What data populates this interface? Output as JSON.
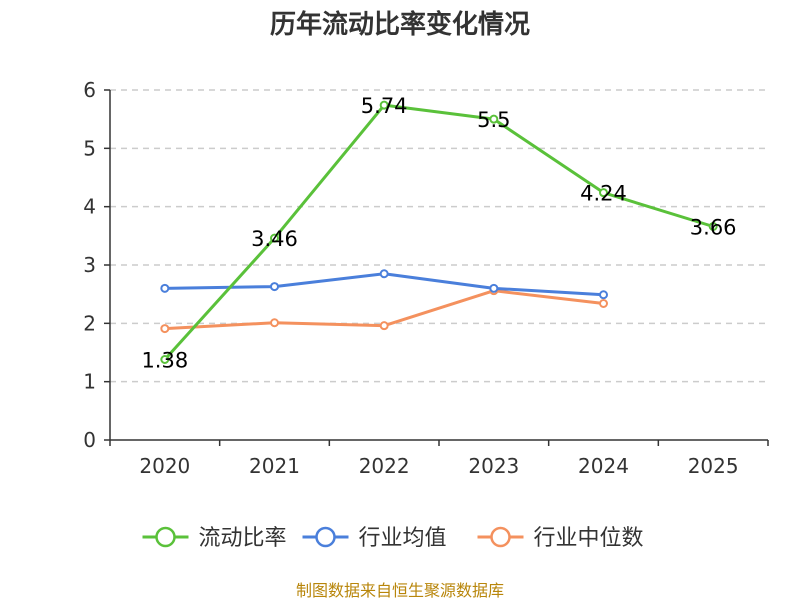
{
  "chart_data": {
    "type": "line",
    "title": "历年流动比率变化情况",
    "categories": [
      "2020",
      "2021",
      "2022",
      "2023",
      "2024",
      "2025"
    ],
    "ylim": [
      0,
      6
    ],
    "yticks": [
      0,
      1,
      2,
      3,
      4,
      5,
      6
    ],
    "xlabel": "",
    "ylabel": "",
    "grid": true,
    "legend_position": "bottom",
    "series": [
      {
        "name": "流动比率",
        "color": "#5ac13a",
        "values": [
          1.38,
          3.46,
          5.74,
          5.5,
          4.24,
          3.66
        ],
        "labels": [
          "1.38",
          "3.46",
          "5.74",
          "5.5",
          "4.24",
          "3.66"
        ],
        "show_labels": true
      },
      {
        "name": "行业均值",
        "color": "#4a7fdb",
        "values": [
          2.6,
          2.63,
          2.85,
          2.6,
          2.49,
          null
        ],
        "show_labels": false
      },
      {
        "name": "行业中位数",
        "color": "#f4915e",
        "values": [
          1.91,
          2.01,
          1.96,
          2.56,
          2.34,
          null
        ],
        "show_labels": false
      }
    ]
  },
  "source_text": "制图数据来自恒生聚源数据库"
}
